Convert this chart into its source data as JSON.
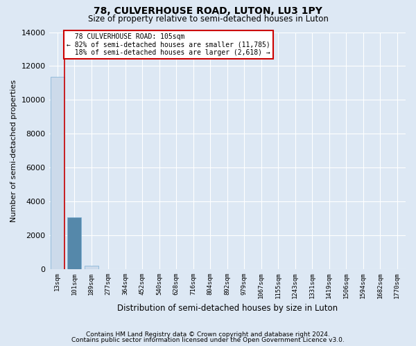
{
  "title1": "78, CULVERHOUSE ROAD, LUTON, LU3 1PY",
  "title2": "Size of property relative to semi-detached houses in Luton",
  "xlabel": "Distribution of semi-detached houses by size in Luton",
  "ylabel": "Number of semi-detached properties",
  "footer1": "Contains HM Land Registry data © Crown copyright and database right 2024.",
  "footer2": "Contains public sector information licensed under the Open Government Licence v3.0.",
  "property_label": "78 CULVERHOUSE ROAD: 105sqm",
  "pct_smaller": 82,
  "count_smaller": 11785,
  "pct_larger": 18,
  "count_larger": 2618,
  "bar_color": "#ccdaea",
  "bar_edge_color": "#7bafd4",
  "highlight_bar_index": 1,
  "highlight_bar_color": "#5588aa",
  "property_line_color": "#cc0000",
  "annotation_box_edge_color": "#cc0000",
  "categories": [
    "13sqm",
    "101sqm",
    "189sqm",
    "277sqm",
    "364sqm",
    "452sqm",
    "540sqm",
    "628sqm",
    "716sqm",
    "804sqm",
    "892sqm",
    "979sqm",
    "1067sqm",
    "1155sqm",
    "1243sqm",
    "1331sqm",
    "1419sqm",
    "1506sqm",
    "1594sqm",
    "1682sqm",
    "1770sqm"
  ],
  "values": [
    11350,
    3050,
    200,
    0,
    0,
    0,
    0,
    0,
    0,
    0,
    0,
    0,
    0,
    0,
    0,
    0,
    0,
    0,
    0,
    0,
    0
  ],
  "ylim": [
    0,
    14000
  ],
  "yticks": [
    0,
    2000,
    4000,
    6000,
    8000,
    10000,
    12000,
    14000
  ],
  "background_color": "#dde8f4",
  "grid_color": "#ffffff",
  "figsize": [
    6.0,
    5.0
  ],
  "dpi": 100,
  "property_line_x": 0.4
}
